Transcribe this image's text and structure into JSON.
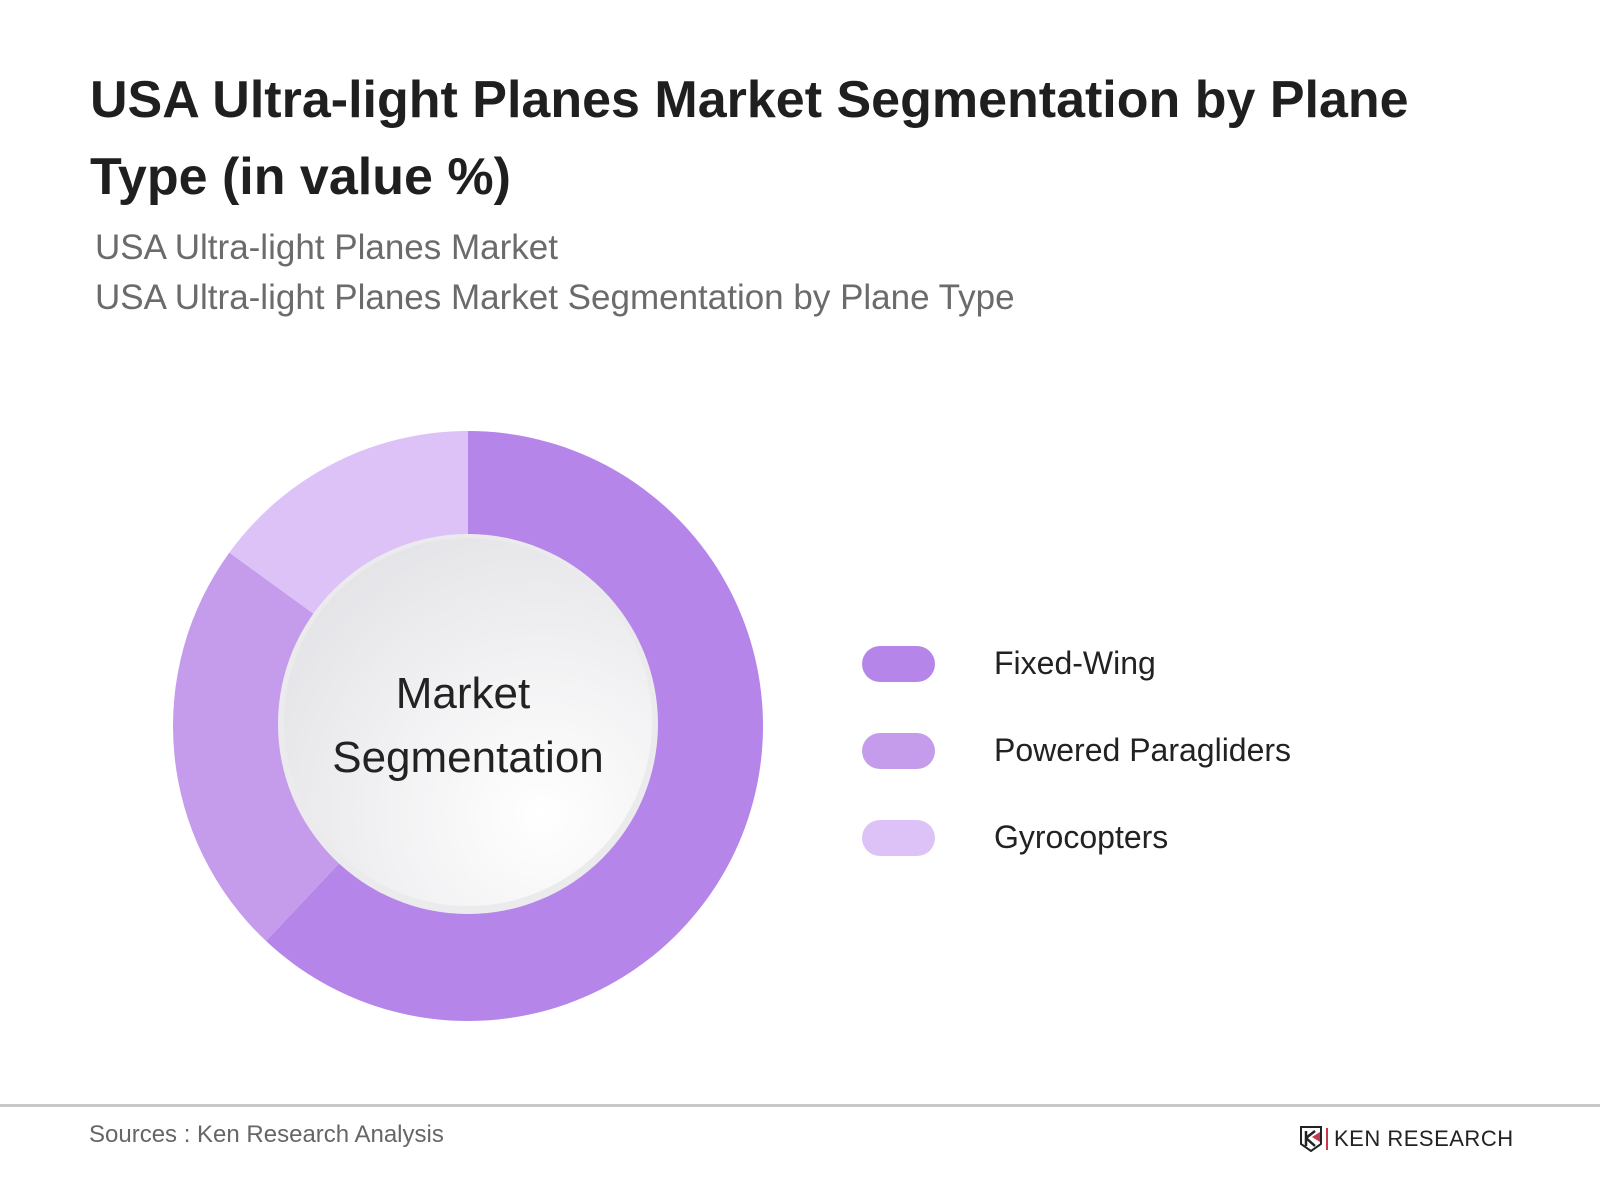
{
  "header": {
    "title": "USA Ultra-light Planes Market Segmentation by Plane Type (in value %)",
    "subtitle_1": "USA Ultra-light Planes Market",
    "subtitle_2": "USA Ultra-light Planes Market Segmentation by Plane Type"
  },
  "chart_data": {
    "type": "pie",
    "donut": true,
    "center_label": [
      "Market",
      "Segmentation"
    ],
    "categories": [
      "Fixed-Wing",
      "Powered Paragliders",
      "Gyrocopters"
    ],
    "values": [
      62,
      23,
      15
    ],
    "colors": [
      "#b585ea",
      "#c59cec",
      "#dcc2f6"
    ],
    "legend_position": "right"
  },
  "footer": {
    "source": "Sources : Ken Research Analysis",
    "logo_text": "KEN RESEARCH"
  }
}
